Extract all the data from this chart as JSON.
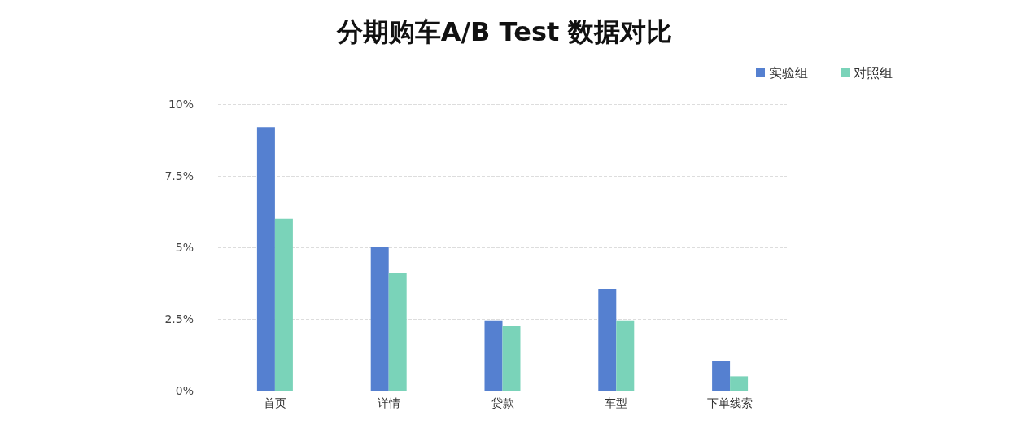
{
  "chart_data": {
    "type": "bar",
    "title": "分期购车A/B Test 数据对比",
    "categories": [
      "首页",
      "详情",
      "贷款",
      "车型",
      "下单线索"
    ],
    "series": [
      {
        "name": "实验组",
        "color": "#5580d0",
        "values": [
          9.2,
          5.0,
          2.45,
          3.55,
          1.05
        ]
      },
      {
        "name": "对照组",
        "color": "#7ad3b9",
        "values": [
          6.0,
          4.1,
          2.25,
          2.45,
          0.5
        ]
      }
    ],
    "ylim": [
      0,
      10
    ],
    "yticks": [
      {
        "value": 0,
        "label": "0%"
      },
      {
        "value": 2.5,
        "label": "2.5%"
      },
      {
        "value": 5,
        "label": "5%"
      },
      {
        "value": 7.5,
        "label": "7.5%"
      },
      {
        "value": 10,
        "label": "10%"
      }
    ],
    "grid": "y",
    "legend": "top right"
  }
}
